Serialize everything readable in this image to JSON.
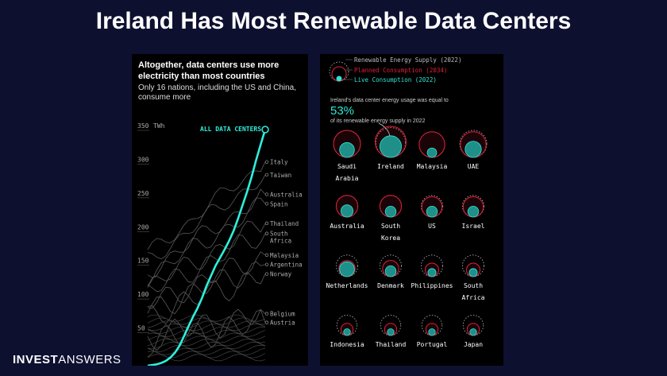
{
  "slide": {
    "title": "Ireland Has Most Renewable Data Centers"
  },
  "brand": {
    "part1": "INVEST",
    "part2": "ANSWERS"
  },
  "chart_data": [
    {
      "type": "line",
      "title": "Altogether, data centers use more electricity than most countries",
      "subtitle_lines": [
        "Only 16 nations, including the US and China,",
        "consume more"
      ],
      "ylabel": "",
      "y_unit": "TWh",
      "ylim": [
        0,
        350
      ],
      "yticks": [
        350,
        300,
        250,
        200,
        150,
        100,
        50
      ],
      "highlight_color": "#2ef0dc",
      "series": [
        {
          "name": "ALL DATA CENTERS",
          "values": [
            0,
            1,
            2,
            4,
            7,
            12,
            19,
            29,
            43,
            58,
            72,
            85,
            100,
            118,
            133,
            148,
            160,
            172,
            185,
            200,
            218,
            238,
            258,
            280,
            305,
            328,
            350
          ]
        }
      ],
      "country_labels": [
        {
          "name": "Italy",
          "value": 302
        },
        {
          "name": "Taiwan",
          "value": 283
        },
        {
          "name": "Australia",
          "value": 254
        },
        {
          "name": "Spain",
          "value": 240
        },
        {
          "name": "Thailand",
          "value": 211
        },
        {
          "name": "South Africa",
          "value": 196
        },
        {
          "name": "Malaysia",
          "value": 164
        },
        {
          "name": "Argentina",
          "value": 150
        },
        {
          "name": "Norway",
          "value": 136
        },
        {
          "name": "Belgium",
          "value": 77
        },
        {
          "name": "Austria",
          "value": 64
        }
      ]
    },
    {
      "type": "bubble-grid",
      "legend": [
        {
          "label": "Renewable Energy Supply (2022)",
          "color": "#bbbbbb",
          "style": "dotted"
        },
        {
          "label": "Planned Consumption (2034)",
          "color": "#e0203c",
          "style": "solid"
        },
        {
          "label": "Live Consumption (2022)",
          "color": "#2ee6d6",
          "style": "filled"
        }
      ],
      "callout": {
        "intro": "Ireland's data center energy usage was equal to",
        "value": "53%",
        "outro": "of its renewable energy supply in 2022"
      },
      "countries": [
        {
          "name": "Saudi Arabia",
          "supply": 1.0,
          "planned": 1.0,
          "live": 0.55
        },
        {
          "name": "Ireland",
          "supply": 1.1,
          "planned": 1.15,
          "live": 0.8
        },
        {
          "name": "Malaysia",
          "supply": 0.95,
          "planned": 0.95,
          "live": 0.35
        },
        {
          "name": "UAE",
          "supply": 1.0,
          "planned": 0.95,
          "live": 0.6
        },
        {
          "name": "Australia",
          "supply": 0.8,
          "planned": 0.8,
          "live": 0.45
        },
        {
          "name": "South Korea",
          "supply": 0.8,
          "planned": 0.8,
          "live": 0.4
        },
        {
          "name": "US",
          "supply": 0.8,
          "planned": 0.75,
          "live": 0.4
        },
        {
          "name": "Israel",
          "supply": 0.8,
          "planned": 0.75,
          "live": 0.4
        },
        {
          "name": "Netherlands",
          "supply": 0.8,
          "planned": 0.6,
          "live": 0.55
        },
        {
          "name": "Denmark",
          "supply": 0.8,
          "planned": 0.6,
          "live": 0.4
        },
        {
          "name": "Philippines",
          "supply": 0.8,
          "planned": 0.5,
          "live": 0.3
        },
        {
          "name": "South Africa",
          "supply": 0.8,
          "planned": 0.5,
          "live": 0.3
        },
        {
          "name": "Indonesia",
          "supply": 0.75,
          "planned": 0.45,
          "live": 0.25
        },
        {
          "name": "Thailand",
          "supply": 0.75,
          "planned": 0.45,
          "live": 0.25
        },
        {
          "name": "Portugal",
          "supply": 0.75,
          "planned": 0.45,
          "live": 0.25
        },
        {
          "name": "Japan",
          "supply": 0.75,
          "planned": 0.45,
          "live": 0.25
        }
      ]
    }
  ]
}
